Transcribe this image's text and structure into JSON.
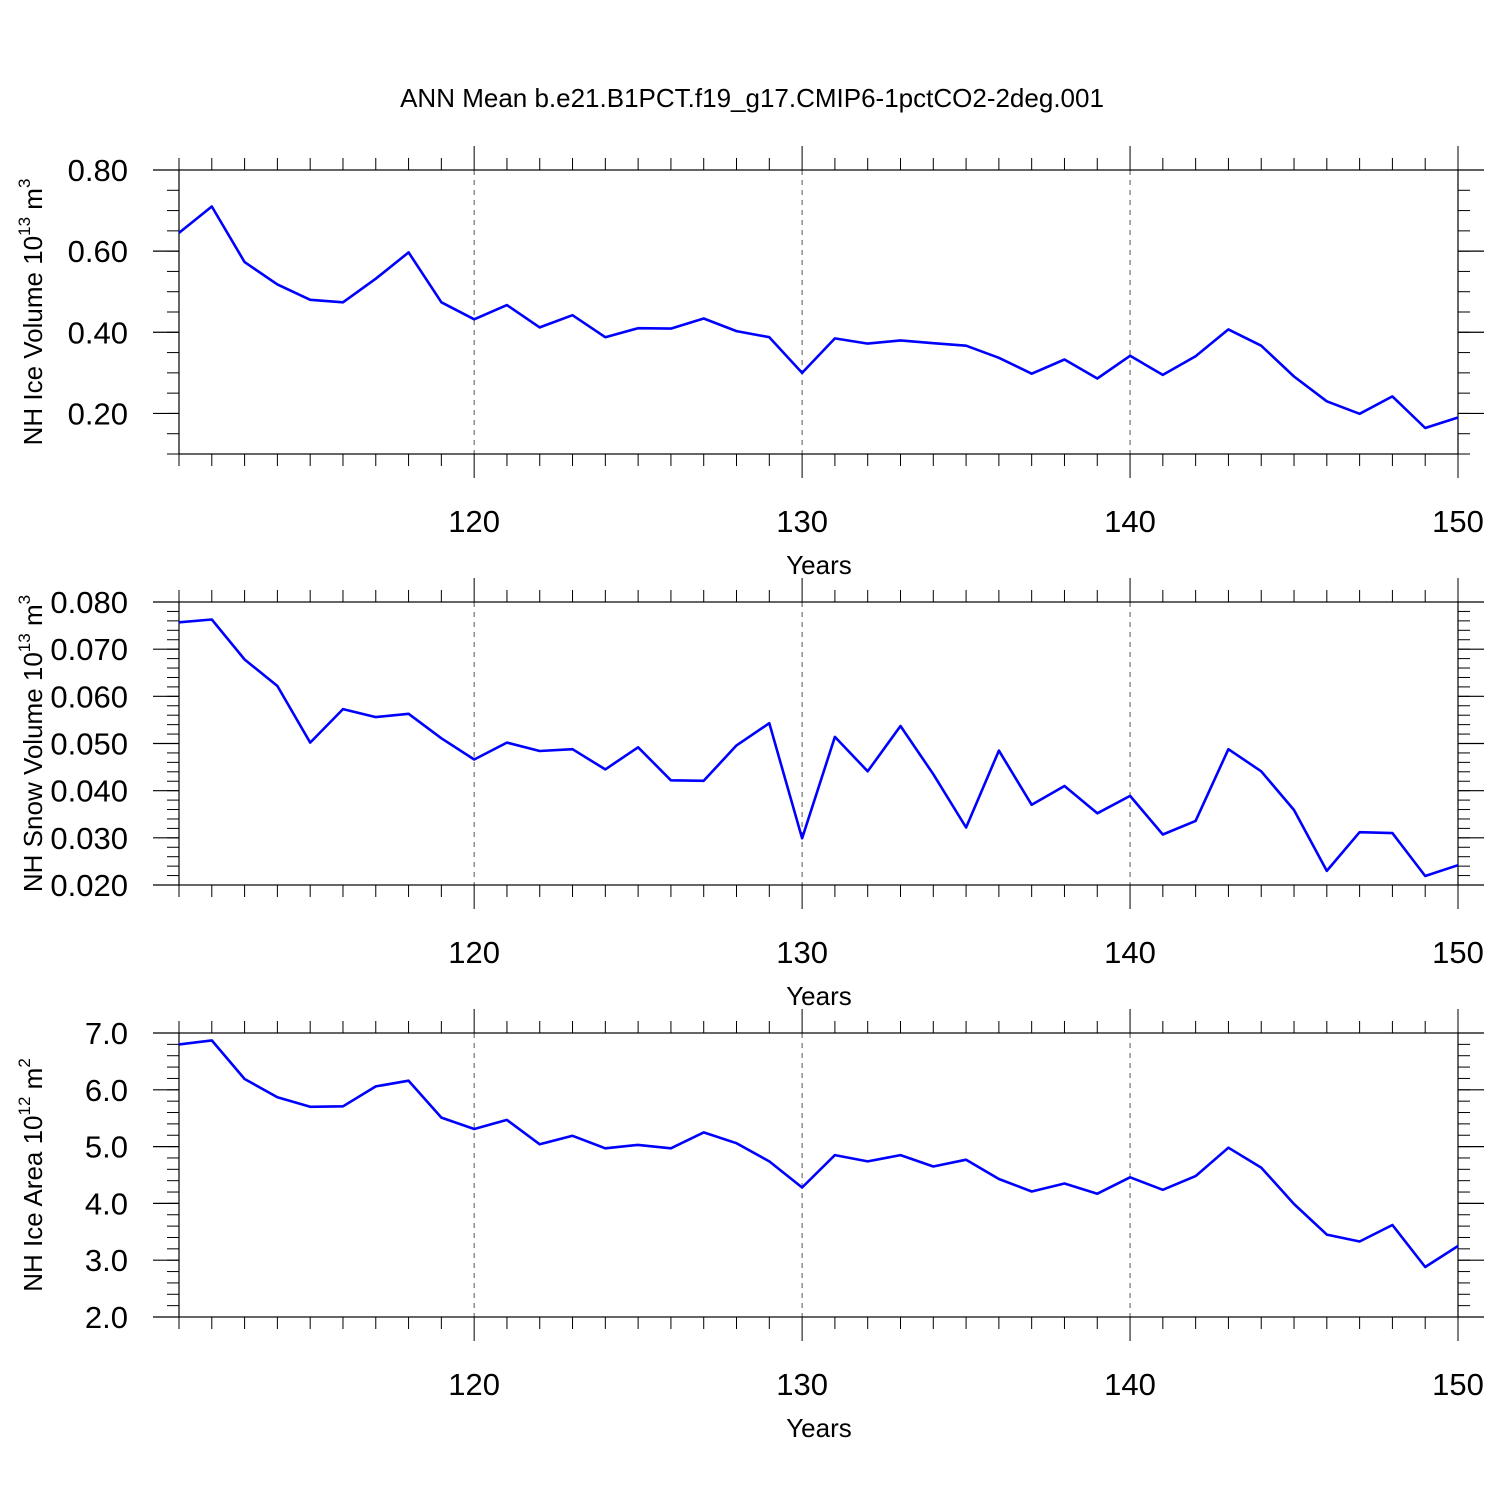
{
  "title": "ANN Mean b.e21.B1PCT.f19_g17.CMIP6-1pctCO2-2deg.001",
  "chart_data": [
    {
      "type": "line",
      "ylabel": {
        "text": "NH Ice Volume 10",
        "sup": "13",
        "unit": " m",
        "unit_sup": "3"
      },
      "xlabel": "Years",
      "xlim": [
        111,
        150
      ],
      "ylim": [
        0.1,
        0.8
      ],
      "yticks": [
        0.2,
        0.4,
        0.6,
        0.8
      ],
      "yticklabels": [
        "0.20",
        "0.40",
        "0.60",
        "0.80"
      ],
      "yminor": 0.05,
      "xticks": [
        120,
        130,
        140,
        150
      ],
      "xticklabels": [
        "120",
        "130",
        "140",
        "150"
      ],
      "grid_x": true,
      "color": "#0000ff",
      "x": [
        111,
        112,
        113,
        114,
        115,
        116,
        117,
        118,
        119,
        120,
        121,
        122,
        123,
        124,
        125,
        126,
        127,
        128,
        129,
        130,
        131,
        132,
        133,
        134,
        135,
        136,
        137,
        138,
        139,
        140,
        141,
        142,
        143,
        144,
        145,
        146,
        147,
        148,
        149,
        150
      ],
      "y": [
        0.645,
        0.71,
        0.573,
        0.518,
        0.48,
        0.474,
        0.532,
        0.597,
        0.474,
        0.432,
        0.467,
        0.412,
        0.442,
        0.388,
        0.41,
        0.409,
        0.434,
        0.403,
        0.388,
        0.3,
        0.385,
        0.372,
        0.38,
        0.373,
        0.367,
        0.337,
        0.298,
        0.333,
        0.286,
        0.342,
        0.295,
        0.341,
        0.407,
        0.367,
        0.291,
        0.23,
        0.199,
        0.242,
        0.164,
        0.19
      ]
    },
    {
      "type": "line",
      "ylabel": {
        "text": "NH Snow Volume 10",
        "sup": "13",
        "unit": " m",
        "unit_sup": "3"
      },
      "xlabel": "Years",
      "xlim": [
        111,
        150
      ],
      "ylim": [
        0.02,
        0.08
      ],
      "yticks": [
        0.02,
        0.03,
        0.04,
        0.05,
        0.06,
        0.07,
        0.08
      ],
      "yticklabels": [
        "0.020",
        "0.030",
        "0.040",
        "0.050",
        "0.060",
        "0.070",
        "0.080"
      ],
      "yminor": 0.002,
      "xticks": [
        120,
        130,
        140,
        150
      ],
      "xticklabels": [
        "120",
        "130",
        "140",
        "150"
      ],
      "grid_x": true,
      "color": "#0000ff",
      "x": [
        111,
        112,
        113,
        114,
        115,
        116,
        117,
        118,
        119,
        120,
        121,
        122,
        123,
        124,
        125,
        126,
        127,
        128,
        129,
        130,
        131,
        132,
        133,
        134,
        135,
        136,
        137,
        138,
        139,
        140,
        141,
        142,
        143,
        144,
        145,
        146,
        147,
        148,
        149,
        150
      ],
      "y": [
        0.0757,
        0.0763,
        0.0678,
        0.0622,
        0.0502,
        0.0573,
        0.0556,
        0.0563,
        0.0511,
        0.0466,
        0.0502,
        0.0484,
        0.0488,
        0.0445,
        0.0492,
        0.0422,
        0.0421,
        0.0496,
        0.0543,
        0.0299,
        0.0514,
        0.0441,
        0.0537,
        0.0435,
        0.0322,
        0.0485,
        0.037,
        0.041,
        0.0352,
        0.0389,
        0.0307,
        0.0336,
        0.0488,
        0.0441,
        0.0359,
        0.023,
        0.0312,
        0.031,
        0.0219,
        0.0242
      ]
    },
    {
      "type": "line",
      "ylabel": {
        "text": "NH Ice Area 10",
        "sup": "12",
        "unit": " m",
        "unit_sup": "2"
      },
      "xlabel": "Years",
      "xlim": [
        111,
        150
      ],
      "ylim": [
        2.0,
        7.0
      ],
      "yticks": [
        2.0,
        3.0,
        4.0,
        5.0,
        6.0,
        7.0
      ],
      "yticklabels": [
        "2.0",
        "3.0",
        "4.0",
        "5.0",
        "6.0",
        "7.0"
      ],
      "yminor": 0.2,
      "xticks": [
        120,
        130,
        140,
        150
      ],
      "xticklabels": [
        "120",
        "130",
        "140",
        "150"
      ],
      "grid_x": true,
      "color": "#0000ff",
      "x": [
        111,
        112,
        113,
        114,
        115,
        116,
        117,
        118,
        119,
        120,
        121,
        122,
        123,
        124,
        125,
        126,
        127,
        128,
        129,
        130,
        131,
        132,
        133,
        134,
        135,
        136,
        137,
        138,
        139,
        140,
        141,
        142,
        143,
        144,
        145,
        146,
        147,
        148,
        149,
        150
      ],
      "y": [
        6.8,
        6.87,
        6.19,
        5.87,
        5.7,
        5.71,
        6.06,
        6.16,
        5.51,
        5.31,
        5.47,
        5.04,
        5.19,
        4.97,
        5.03,
        4.97,
        5.25,
        5.06,
        4.74,
        4.28,
        4.85,
        4.74,
        4.85,
        4.65,
        4.77,
        4.43,
        4.21,
        4.35,
        4.17,
        4.46,
        4.24,
        4.48,
        4.98,
        4.63,
        3.99,
        3.45,
        3.33,
        3.62,
        2.88,
        3.25
      ]
    }
  ]
}
